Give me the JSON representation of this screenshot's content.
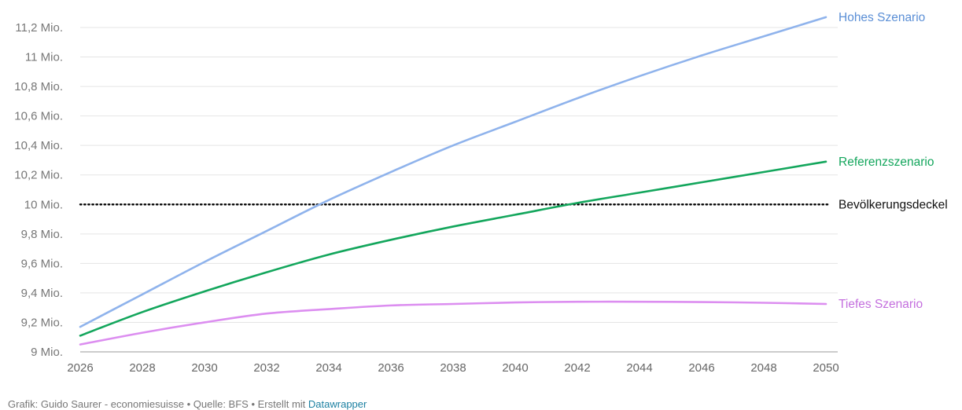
{
  "chart_data": {
    "type": "line",
    "x": [
      2026,
      2028,
      2030,
      2032,
      2034,
      2036,
      2038,
      2040,
      2042,
      2044,
      2046,
      2048,
      2050
    ],
    "x_ticks": [
      "2026",
      "2028",
      "2030",
      "2032",
      "2034",
      "2036",
      "2038",
      "2040",
      "2042",
      "2044",
      "2046",
      "2048",
      "2050"
    ],
    "ylim": [
      9.0,
      11.2
    ],
    "y_ticks": [
      {
        "value": 9.0,
        "label": "9 Mio."
      },
      {
        "value": 9.2,
        "label": "9,2 Mio."
      },
      {
        "value": 9.4,
        "label": "9,4 Mio."
      },
      {
        "value": 9.6,
        "label": "9,6 Mio."
      },
      {
        "value": 9.8,
        "label": "9,8 Mio."
      },
      {
        "value": 10.0,
        "label": "10 Mio."
      },
      {
        "value": 10.2,
        "label": "10,2 Mio."
      },
      {
        "value": 10.4,
        "label": "10,4 Mio."
      },
      {
        "value": 10.6,
        "label": "10,6 Mio."
      },
      {
        "value": 10.8,
        "label": "10,8 Mio."
      },
      {
        "value": 11.0,
        "label": "11 Mio."
      },
      {
        "value": 11.2,
        "label": "11,2 Mio."
      }
    ],
    "grid": true,
    "legend": "direct labels at line ends",
    "series": [
      {
        "name": "Hohes Szenario",
        "color": "#8fb3ec",
        "values": [
          9.17,
          9.39,
          9.61,
          9.82,
          10.03,
          10.22,
          10.4,
          10.56,
          10.72,
          10.87,
          11.01,
          11.14,
          11.27
        ]
      },
      {
        "name": "Referenzszenario",
        "color": "#13a65c",
        "values": [
          9.11,
          9.27,
          9.41,
          9.54,
          9.66,
          9.76,
          9.85,
          9.93,
          10.01,
          10.08,
          10.15,
          10.22,
          10.29
        ]
      },
      {
        "name": "Tiefes Szenario",
        "color": "#dc8ef0",
        "values": [
          9.05,
          9.13,
          9.2,
          9.26,
          9.29,
          9.315,
          9.325,
          9.335,
          9.34,
          9.34,
          9.338,
          9.333,
          9.325
        ]
      }
    ],
    "reference_line": {
      "name": "Bevölkerungsdeckel",
      "value": 10.0,
      "color": "#000000",
      "style": "dotted"
    },
    "label_colors": {
      "Hohes Szenario": "#5b8fd6",
      "Referenzszenario": "#13a65c",
      "Tiefes Szenario": "#c46fde",
      "Bevölkerungsdeckel": "#111111"
    }
  },
  "footer": {
    "credit": "Grafik: Guido Saurer - economiesuisse • Quelle: BFS • Erstellt mit",
    "link": "Datawrapper"
  }
}
